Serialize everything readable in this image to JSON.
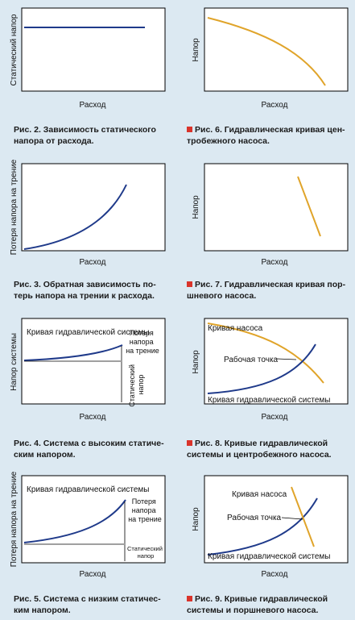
{
  "figures": [
    {
      "id": "fig2",
      "ylabel": "Статический напор",
      "xlabel": "Расход",
      "caption_line1": "Рис. 2. Зависимость статического",
      "caption_line2": "напора от расхода.",
      "curve_color": "#1f3a8a"
    },
    {
      "id": "fig6",
      "ylabel": "Напор",
      "xlabel": "Расход",
      "caption_line1": "Рис. 6. Гидравлическая кривая цен-",
      "caption_line2": "тробежного насоса.",
      "curve_color": "#e0a42a"
    },
    {
      "id": "fig3",
      "ylabel": "Потеря напора на трение",
      "xlabel": "Расход",
      "caption_line1": "Рис. 3. Обратная зависимость по-",
      "caption_line2": "терь напора на трении к расхода."
    },
    {
      "id": "fig7",
      "ylabel": "Напор",
      "xlabel": "Расход",
      "caption_line1": "Рис. 7. Гидравлическая кривая пор-",
      "caption_line2": "шневого насоса."
    },
    {
      "id": "fig4",
      "ylabel": "Напор системы",
      "xlabel": "Расход",
      "curve_label": "Кривая гидравлической системы",
      "friction_label": [
        "Потеря",
        "напора",
        "на трение"
      ],
      "static_label": [
        "Статический",
        "напор"
      ],
      "caption_line1": "Рис. 4. Система с высоким статиче-",
      "caption_line2": "ским напором."
    },
    {
      "id": "fig8",
      "ylabel": "Напор",
      "xlabel": "Расход",
      "pump_label": "Кривая насоса",
      "point_label": "Рабочая точка",
      "system_label": "Кривая гидравлической системы",
      "caption_line1": "Рис. 8. Кривые гидравлической",
      "caption_line2": "системы и центробежного насоса."
    },
    {
      "id": "fig5",
      "ylabel": "Потеря напора на трение",
      "xlabel": "Расход",
      "curve_label": "Кривая гидравлической системы",
      "friction_label": [
        "Потеря",
        "напора",
        "на трение"
      ],
      "static_label": [
        "Статический",
        "напор"
      ],
      "caption_line1": "Рис. 5. Система с низким статичес-",
      "caption_line2": "ким напором."
    },
    {
      "id": "fig9",
      "ylabel": "Напор",
      "xlabel": "Расход",
      "pump_label": "Кривая насоса",
      "point_label": "Рабочая точка",
      "system_label": "Кривая гидравлической системы",
      "caption_line1": "Рис. 9. Кривые гидравлической",
      "caption_line2": "системы и поршневого насоса."
    }
  ],
  "colors": {
    "system": "#1f3a8a",
    "pump": "#e0a42a",
    "background": "#dce9f2"
  }
}
